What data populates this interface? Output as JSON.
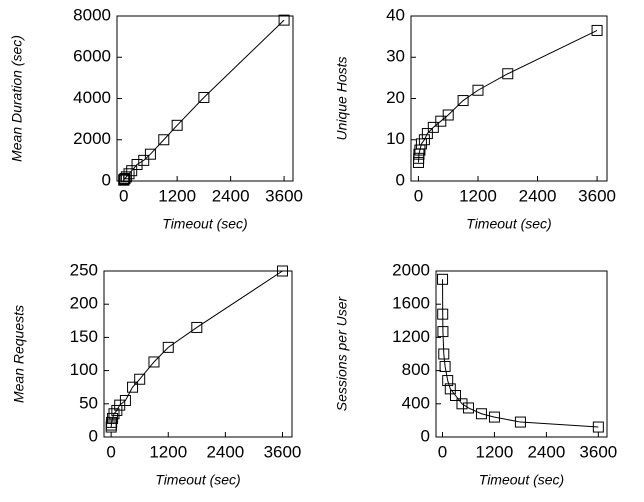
{
  "chart_data": [
    {
      "type": "line",
      "x_label": "Timeout (sec)",
      "y_label": "Mean Duration (sec)",
      "x": [
        1,
        5,
        10,
        30,
        60,
        120,
        180,
        300,
        450,
        600,
        900,
        1200,
        1800,
        3600
      ],
      "values": [
        40,
        60,
        80,
        120,
        200,
        350,
        500,
        800,
        1000,
        1300,
        2000,
        2700,
        4050,
        7800
      ],
      "color": "#000000",
      "xlim": [
        -150,
        3800
      ],
      "xticks": [
        0,
        1200,
        2400,
        3600
      ],
      "ylim": [
        0,
        8000
      ],
      "yticks": [
        0,
        2000,
        4000,
        6000,
        8000
      ]
    },
    {
      "type": "line",
      "x_label": "Timeout (sec)",
      "y_label": "Unique Hosts",
      "x": [
        1,
        5,
        10,
        30,
        60,
        120,
        180,
        300,
        450,
        600,
        900,
        1200,
        1800,
        3600
      ],
      "values": [
        4.5,
        5.5,
        6.5,
        7.5,
        9,
        10,
        11.5,
        13,
        14.5,
        16,
        19.5,
        22,
        26,
        36.5
      ],
      "color": "#000000",
      "xlim": [
        -150,
        3800
      ],
      "xticks": [
        0,
        1200,
        2400,
        3600
      ],
      "ylim": [
        0,
        40
      ],
      "yticks": [
        0,
        10,
        20,
        30,
        40
      ]
    },
    {
      "type": "line",
      "x_label": "Timeout (sec)",
      "y_label": "Mean Requests",
      "x": [
        1,
        5,
        10,
        30,
        60,
        120,
        180,
        300,
        450,
        600,
        900,
        1200,
        1800,
        3600
      ],
      "values": [
        15,
        18,
        22,
        28,
        35,
        40,
        48,
        55,
        75,
        87,
        113,
        135,
        165,
        250
      ],
      "color": "#000000",
      "xlim": [
        -150,
        3800
      ],
      "xticks": [
        0,
        1200,
        2400,
        3600
      ],
      "ylim": [
        0,
        250
      ],
      "yticks": [
        0,
        50,
        100,
        150,
        200,
        250
      ]
    },
    {
      "type": "line",
      "x_label": "Timeout (sec)",
      "y_label": "Sessions per User",
      "x": [
        1,
        5,
        10,
        30,
        60,
        120,
        180,
        300,
        450,
        600,
        900,
        1200,
        1800,
        3600
      ],
      "values": [
        1900,
        1480,
        1270,
        1000,
        850,
        680,
        580,
        500,
        400,
        350,
        280,
        240,
        180,
        120
      ],
      "color": "#000000",
      "xlim": [
        -150,
        3800
      ],
      "xticks": [
        0,
        1200,
        2400,
        3600
      ],
      "ylim": [
        0,
        2000
      ],
      "yticks": [
        0,
        400,
        800,
        1200,
        1600,
        2000
      ]
    }
  ]
}
